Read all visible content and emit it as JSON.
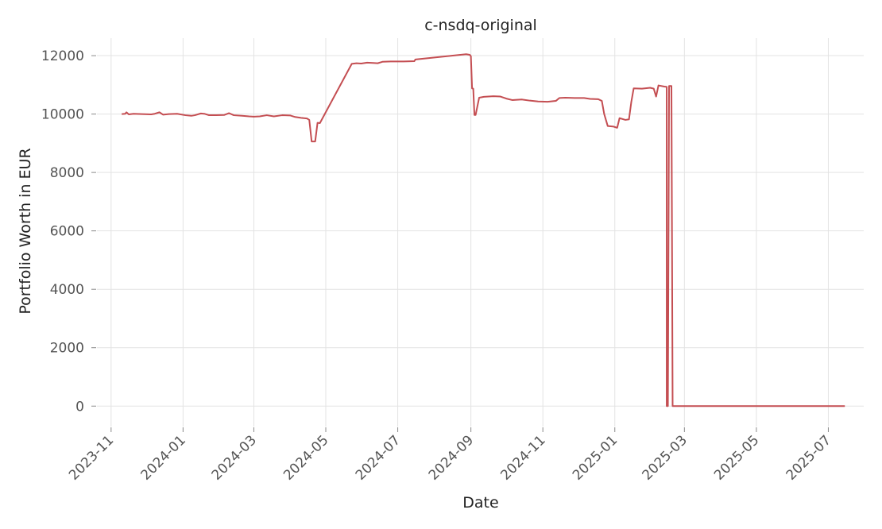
{
  "chart_data": {
    "type": "line",
    "title": "c-nsdq-original",
    "xlabel": "Date",
    "ylabel": "Portfolio Worth in EUR",
    "x_axis_type": "date",
    "xlim": [
      "2023-10-20",
      "2025-07-31"
    ],
    "ylim": [
      -700,
      12600
    ],
    "x_ticks": [
      "2023-11-01",
      "2024-01-01",
      "2024-03-01",
      "2024-05-01",
      "2024-07-01",
      "2024-09-01",
      "2024-11-01",
      "2025-01-01",
      "2025-03-01",
      "2025-05-01",
      "2025-07-01"
    ],
    "x_tick_labels": [
      "2023-11",
      "2024-01",
      "2024-03",
      "2024-05",
      "2024-07",
      "2024-09",
      "2024-11",
      "2025-01",
      "2025-03",
      "2025-05",
      "2025-07"
    ],
    "y_ticks": [
      0,
      2000,
      4000,
      6000,
      8000,
      10000,
      12000
    ],
    "y_tick_labels": [
      "0",
      "2000",
      "4000",
      "6000",
      "8000",
      "10000",
      "12000"
    ],
    "grid": true,
    "line_color": "#c44e52",
    "series": [
      {
        "points": [
          [
            "2023-11-10",
            10000
          ],
          [
            "2023-11-13",
            10010
          ],
          [
            "2023-11-14",
            10060
          ],
          [
            "2023-11-16",
            9990
          ],
          [
            "2023-11-20",
            10010
          ],
          [
            "2023-11-27",
            10000
          ],
          [
            "2023-12-05",
            9990
          ],
          [
            "2023-12-08",
            10010
          ],
          [
            "2023-12-12",
            10060
          ],
          [
            "2023-12-15",
            9980
          ],
          [
            "2023-12-20",
            10000
          ],
          [
            "2023-12-27",
            10010
          ],
          [
            "2024-01-03",
            9960
          ],
          [
            "2024-01-08",
            9940
          ],
          [
            "2024-01-11",
            9960
          ],
          [
            "2024-01-16",
            10020
          ],
          [
            "2024-01-19",
            10010
          ],
          [
            "2024-01-23",
            9960
          ],
          [
            "2024-01-29",
            9960
          ],
          [
            "2024-02-05",
            9970
          ],
          [
            "2024-02-09",
            10030
          ],
          [
            "2024-02-13",
            9960
          ],
          [
            "2024-02-20",
            9940
          ],
          [
            "2024-02-26",
            9920
          ],
          [
            "2024-03-01",
            9910
          ],
          [
            "2024-03-06",
            9920
          ],
          [
            "2024-03-12",
            9960
          ],
          [
            "2024-03-18",
            9920
          ],
          [
            "2024-03-25",
            9960
          ],
          [
            "2024-04-01",
            9950
          ],
          [
            "2024-04-05",
            9900
          ],
          [
            "2024-04-10",
            9870
          ],
          [
            "2024-04-15",
            9850
          ],
          [
            "2024-04-17",
            9800
          ],
          [
            "2024-04-19",
            9060
          ],
          [
            "2024-04-22",
            9060
          ],
          [
            "2024-04-24",
            9700
          ],
          [
            "2024-04-26",
            9690
          ],
          [
            "2024-05-23",
            11720
          ],
          [
            "2024-05-27",
            11740
          ],
          [
            "2024-05-31",
            11730
          ],
          [
            "2024-06-05",
            11760
          ],
          [
            "2024-06-10",
            11750
          ],
          [
            "2024-06-14",
            11740
          ],
          [
            "2024-06-18",
            11790
          ],
          [
            "2024-06-25",
            11800
          ],
          [
            "2024-07-05",
            11800
          ],
          [
            "2024-07-15",
            11810
          ],
          [
            "2024-07-16",
            11870
          ],
          [
            "2024-08-28",
            12050
          ],
          [
            "2024-08-31",
            12030
          ],
          [
            "2024-09-01",
            11980
          ],
          [
            "2024-09-02",
            10880
          ],
          [
            "2024-09-03",
            10870
          ],
          [
            "2024-09-04",
            9970
          ],
          [
            "2024-09-05",
            9970
          ],
          [
            "2024-09-08",
            10560
          ],
          [
            "2024-09-12",
            10590
          ],
          [
            "2024-09-20",
            10610
          ],
          [
            "2024-09-26",
            10600
          ],
          [
            "2024-10-01",
            10530
          ],
          [
            "2024-10-06",
            10480
          ],
          [
            "2024-10-14",
            10500
          ],
          [
            "2024-10-21",
            10460
          ],
          [
            "2024-10-28",
            10430
          ],
          [
            "2024-11-05",
            10420
          ],
          [
            "2024-11-12",
            10450
          ],
          [
            "2024-11-15",
            10550
          ],
          [
            "2024-11-20",
            10560
          ],
          [
            "2024-11-28",
            10550
          ],
          [
            "2024-12-06",
            10550
          ],
          [
            "2024-12-11",
            10520
          ],
          [
            "2024-12-18",
            10510
          ],
          [
            "2024-12-21",
            10450
          ],
          [
            "2024-12-23",
            10000
          ],
          [
            "2024-12-26",
            9590
          ],
          [
            "2024-12-31",
            9570
          ],
          [
            "2025-01-03",
            9530
          ],
          [
            "2025-01-05",
            9860
          ],
          [
            "2025-01-10",
            9800
          ],
          [
            "2025-01-13",
            9820
          ],
          [
            "2025-01-15",
            10420
          ],
          [
            "2025-01-17",
            10880
          ],
          [
            "2025-01-24",
            10870
          ],
          [
            "2025-01-31",
            10900
          ],
          [
            "2025-02-03",
            10870
          ],
          [
            "2025-02-05",
            10600
          ],
          [
            "2025-02-07",
            10980
          ],
          [
            "2025-02-12",
            10940
          ],
          [
            "2025-02-14",
            10930
          ],
          [
            "2025-02-14",
            0
          ],
          [
            "2025-02-15",
            0
          ],
          [
            "2025-02-16",
            10960
          ],
          [
            "2025-02-18",
            10960
          ],
          [
            "2025-02-19",
            0
          ],
          [
            "2025-07-15",
            0
          ]
        ]
      }
    ]
  }
}
